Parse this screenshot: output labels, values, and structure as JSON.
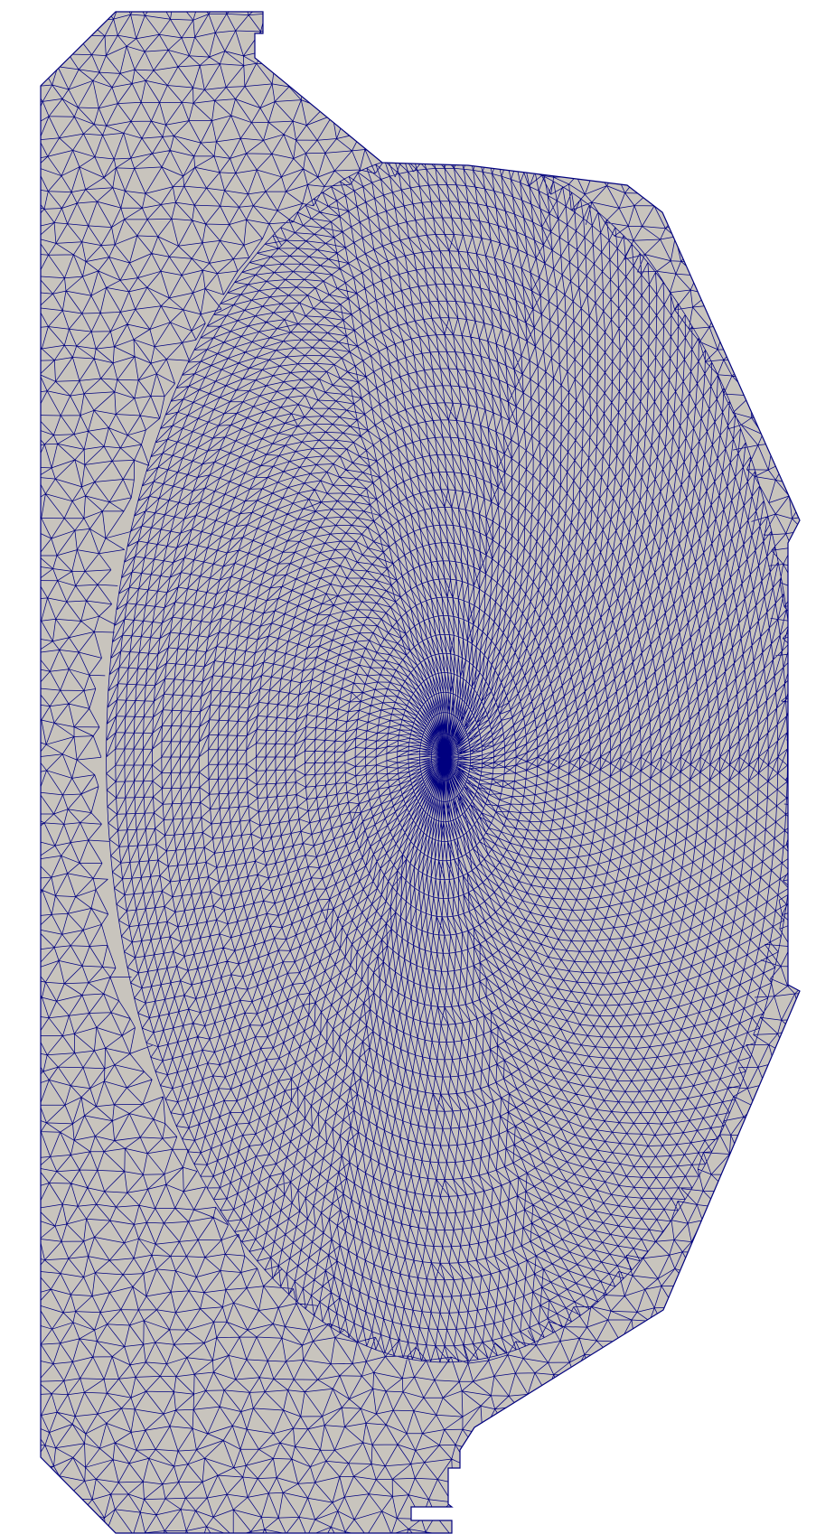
{
  "figure": {
    "kind": "finite-element triangular mesh",
    "region_fill_color": "#c8c4bd",
    "edge_color": "#00007f",
    "background_color": "#ffffff",
    "shape": "polygonal cross-section with elliptical refined core",
    "radial_rings_in_core": 34,
    "spokes_in_core": 96
  }
}
